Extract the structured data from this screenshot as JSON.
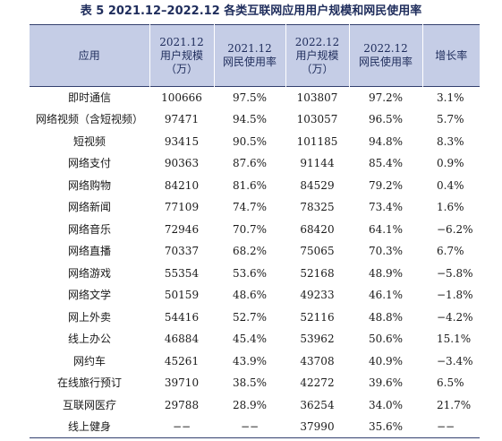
{
  "title": "表 5  2021.12–2022.12 各类互联网应用用户规模和网民使用率",
  "headers": [
    "应用",
    "2021.12\n用户规模\n（万）",
    "2021.12\n网民使用率",
    "2022.12\n用户规模\n（万）",
    "2022.12\n网民使用率",
    "增长率"
  ],
  "rows": [
    [
      "即时通信",
      "100666",
      "97.5%",
      "103807",
      "97.2%",
      "3.1%"
    ],
    [
      "网络视频（含短视频）",
      "97471",
      "94.5%",
      "103057",
      "96.5%",
      "5.7%"
    ],
    [
      "短视频",
      "93415",
      "90.5%",
      "101185",
      "94.8%",
      "8.3%"
    ],
    [
      "网络支付",
      "90363",
      "87.6%",
      "91144",
      "85.4%",
      "0.9%"
    ],
    [
      "网络购物",
      "84210",
      "81.6%",
      "84529",
      "79.2%",
      "0.4%"
    ],
    [
      "网络新闻",
      "77109",
      "74.7%",
      "78325",
      "73.4%",
      "1.6%"
    ],
    [
      "网络音乐",
      "72946",
      "70.7%",
      "68420",
      "64.1%",
      "−6.2%"
    ],
    [
      "网络直播",
      "70337",
      "68.2%",
      "75065",
      "70.3%",
      "6.7%"
    ],
    [
      "网络游戏",
      "55354",
      "53.6%",
      "52168",
      "48.9%",
      "−5.8%"
    ],
    [
      "网络文学",
      "50159",
      "48.6%",
      "49233",
      "46.1%",
      "−1.8%"
    ],
    [
      "网上外卖",
      "54416",
      "52.7%",
      "52116",
      "48.8%",
      "−4.2%"
    ],
    [
      "线上办公",
      "46884",
      "45.4%",
      "53962",
      "50.6%",
      "15.1%"
    ],
    [
      "网约车",
      "45261",
      "43.9%",
      "43708",
      "40.9%",
      "−3.4%"
    ],
    [
      "在线旅行预订",
      "39710",
      "38.5%",
      "42272",
      "39.6%",
      "6.5%"
    ],
    [
      "互联网医疗",
      "29788",
      "28.9%",
      "36254",
      "34.0%",
      "21.7%"
    ],
    [
      "线上健身",
      "−−",
      "−−",
      "37990",
      "35.6%",
      "−−"
    ]
  ]
}
